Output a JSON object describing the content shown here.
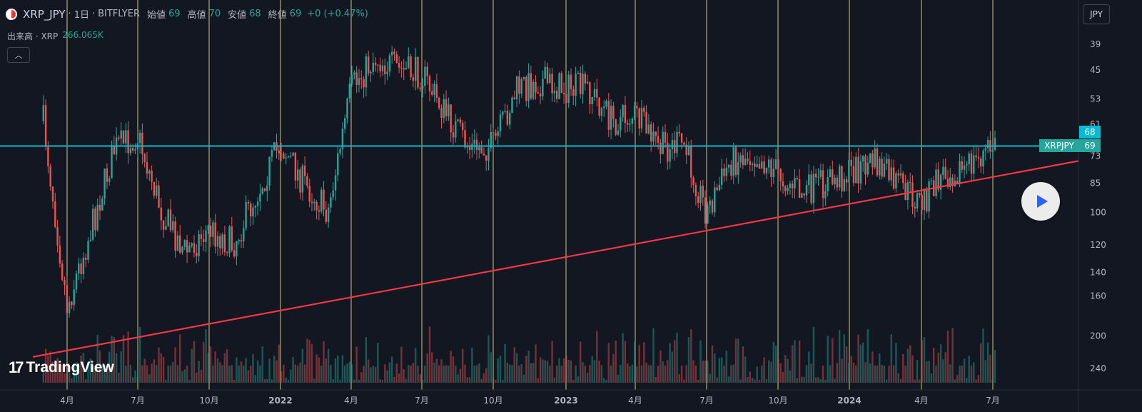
{
  "header": {
    "symbol": "XRP_JPY",
    "interval": "1日",
    "exchange": "BITFLYER",
    "open_label": "始値",
    "open_value": "69",
    "high_label": "高値",
    "high_value": "70",
    "low_label": "安値",
    "low_value": "68",
    "close_label": "終値",
    "close_value": "69",
    "change": "+0 (+0.47%)"
  },
  "volume_legend": {
    "label": "出来高 · XRP",
    "value": "266.065K"
  },
  "currency_button": "JPY",
  "price_tags": {
    "upper": "68",
    "symbol_tag": "XRPJPY",
    "lower": "69"
  },
  "brand": "TradingView",
  "colors": {
    "background": "#131722",
    "up": "#26a69a",
    "down": "#ef5350",
    "trendline": "#f23645",
    "horizontal": "#00bcd4",
    "vertical": "#f5e38a"
  },
  "chart_data": {
    "type": "candlestick",
    "y_scale": "log-inverted",
    "y_ticks": [
      "39",
      "45",
      "53",
      "61",
      "73",
      "85",
      "100",
      "120",
      "140",
      "160",
      "200",
      "240"
    ],
    "x_ticks": [
      "4月",
      "7月",
      "10月",
      "2022",
      "4月",
      "7月",
      "10月",
      "2023",
      "4月",
      "7月",
      "10月",
      "2024",
      "4月",
      "7月"
    ],
    "closes_sampled": [
      {
        "date": "2021-03",
        "close": 60
      },
      {
        "date": "2021-04",
        "close": 170
      },
      {
        "date": "2021-05",
        "close": 110
      },
      {
        "date": "2021-06",
        "close": 70
      },
      {
        "date": "2021-07",
        "close": 65
      },
      {
        "date": "2021-08",
        "close": 100
      },
      {
        "date": "2021-09",
        "close": 125
      },
      {
        "date": "2021-10",
        "close": 110
      },
      {
        "date": "2021-11",
        "close": 120
      },
      {
        "date": "2021-12",
        "close": 90
      },
      {
        "date": "2022-01",
        "close": 68
      },
      {
        "date": "2022-02",
        "close": 85
      },
      {
        "date": "2022-03",
        "close": 100
      },
      {
        "date": "2022-04",
        "close": 50
      },
      {
        "date": "2022-05",
        "close": 42
      },
      {
        "date": "2022-06",
        "close": 45
      },
      {
        "date": "2022-07",
        "close": 46
      },
      {
        "date": "2022-08",
        "close": 58
      },
      {
        "date": "2022-09",
        "close": 70
      },
      {
        "date": "2022-10",
        "close": 69
      },
      {
        "date": "2022-11",
        "close": 50
      },
      {
        "date": "2022-12",
        "close": 48
      },
      {
        "date": "2023-01",
        "close": 50
      },
      {
        "date": "2023-02",
        "close": 50
      },
      {
        "date": "2023-03",
        "close": 60
      },
      {
        "date": "2023-04",
        "close": 58
      },
      {
        "date": "2023-05",
        "close": 70
      },
      {
        "date": "2023-06",
        "close": 68
      },
      {
        "date": "2023-07",
        "close": 100
      },
      {
        "date": "2023-08",
        "close": 75
      },
      {
        "date": "2023-09",
        "close": 72
      },
      {
        "date": "2023-10",
        "close": 80
      },
      {
        "date": "2023-11",
        "close": 90
      },
      {
        "date": "2023-12",
        "close": 85
      },
      {
        "date": "2024-01",
        "close": 80
      },
      {
        "date": "2024-02",
        "close": 75
      },
      {
        "date": "2024-03",
        "close": 85
      },
      {
        "date": "2024-04",
        "close": 95
      },
      {
        "date": "2024-05",
        "close": 80
      },
      {
        "date": "2024-06",
        "close": 78
      },
      {
        "date": "2024-07",
        "close": 69
      }
    ],
    "horizontal_line": 69,
    "trendline": [
      {
        "date": "2021-02",
        "price": 225
      },
      {
        "date": "2024-09",
        "price": 75
      }
    ]
  }
}
